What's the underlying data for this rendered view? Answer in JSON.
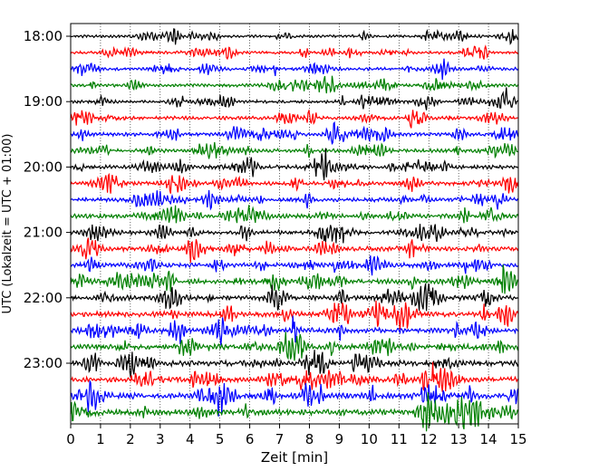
{
  "chart_data": {
    "type": "line",
    "title": "",
    "xlabel": "Zeit  [min]",
    "ylabel": "UTC (Lokalzeit = UTC + 01:00)",
    "xlim": [
      0,
      15
    ],
    "x_ticks": [
      "0",
      "1",
      "2",
      "3",
      "4",
      "5",
      "6",
      "7",
      "8",
      "9",
      "10",
      "11",
      "12",
      "13",
      "14",
      "15"
    ],
    "y_ticks": [
      "18:00",
      "19:00",
      "20:00",
      "21:00",
      "22:00",
      "23:00"
    ],
    "trace_start_times": [
      "18:00",
      "18:15",
      "18:30",
      "18:45",
      "19:00",
      "19:15",
      "19:30",
      "19:45",
      "20:00",
      "20:15",
      "20:30",
      "20:45",
      "21:00",
      "21:15",
      "21:30",
      "21:45",
      "22:00",
      "22:15",
      "22:30",
      "22:45",
      "23:00",
      "23:15",
      "23:30",
      "23:45"
    ],
    "trace_colors": [
      "#000000",
      "#ff0000",
      "#0000ff",
      "#008000"
    ],
    "grid": "vertical-dotted",
    "legend": "none"
  }
}
